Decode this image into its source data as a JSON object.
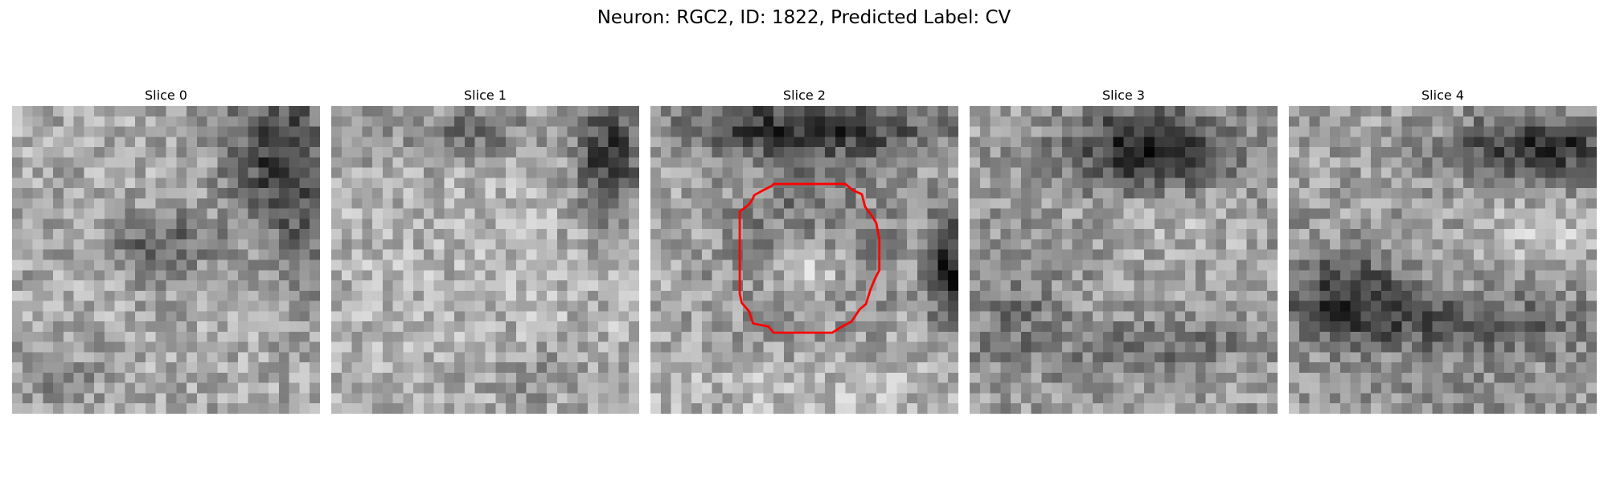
{
  "figure": {
    "title": "Neuron: RGC2, ID: 1822, Predicted Label: CV"
  },
  "slices": [
    {
      "title": "Slice 0"
    },
    {
      "title": "Slice 1"
    },
    {
      "title": "Slice 2",
      "has_contour": true,
      "contour_color": "#ff0000"
    },
    {
      "title": "Slice 3"
    },
    {
      "title": "Slice 4"
    }
  ],
  "colors": {
    "background": "#ffffff",
    "contour": "#ff0000"
  },
  "image_style": {
    "colormap": "grayscale",
    "grid": 30
  }
}
